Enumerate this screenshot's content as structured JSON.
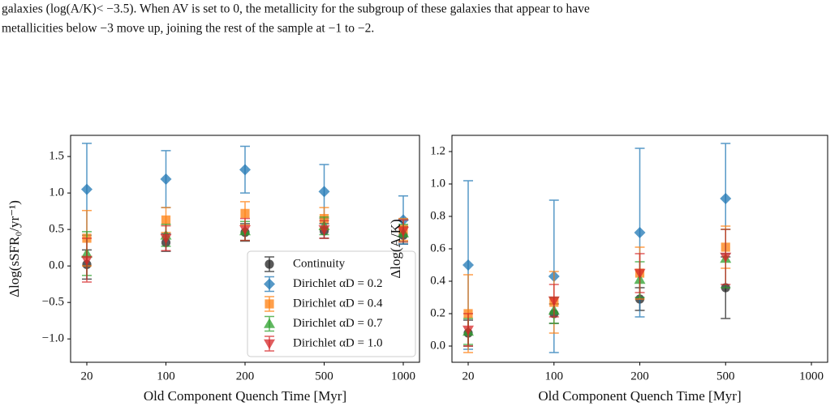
{
  "text": [
    "galaxies (log(A/K)< −3.5).  When AV is set to 0, the metallicity for the subgroup of these galaxies that appear to have",
    "metallicities below −3 move up, joining the rest of the sample at −1 to −2."
  ],
  "chart_data": [
    {
      "type": "errorbar",
      "x_label": "Old Component Quench Time [Myr]",
      "y_label": "Δlog(sSFR₀/yr⁻¹)",
      "categories": [
        "20",
        "100",
        "200",
        "500",
        "1000"
      ],
      "ylim": [
        -1.32,
        1.79
      ],
      "yticks": [
        {
          "value": -1.0,
          "label": "−1.0"
        },
        {
          "value": -0.5,
          "label": "−0.5"
        },
        {
          "value": 0,
          "label": "0.0"
        },
        0.5,
        {
          "value": 1.0,
          "label": "1.0"
        },
        1.5
      ],
      "legend": "lower right",
      "series": [
        {
          "name": "Continuity",
          "color": "#222222",
          "marker": "o",
          "values": [
            0.02,
            0.32,
            0.46,
            0.48,
            0.42
          ],
          "errors": [
            0.2,
            0.12,
            0.12,
            0.1,
            0.12
          ]
        },
        {
          "name": "Dirichlet αD = 0.2",
          "color": "#1f77b4",
          "marker": "D",
          "values": [
            1.05,
            1.19,
            1.32,
            1.02,
            0.63
          ],
          "errors": [
            0.63,
            0.39,
            0.32,
            0.37,
            0.33
          ]
        },
        {
          "name": "Dirichlet αD = 0.4",
          "color": "#ff7f0e",
          "marker": "s",
          "values": [
            0.38,
            0.63,
            0.72,
            0.65,
            0.5
          ],
          "errors": [
            0.38,
            0.17,
            0.16,
            0.15,
            0.15
          ]
        },
        {
          "name": "Dirichlet αD = 0.7",
          "color": "#2ca02c",
          "marker": "^",
          "values": [
            0.17,
            0.42,
            0.48,
            0.55,
            0.45
          ],
          "errors": [
            0.3,
            0.15,
            0.13,
            0.12,
            0.12
          ]
        },
        {
          "name": "Dirichlet αD = 1.0",
          "color": "#d62728",
          "marker": "v",
          "values": [
            0.08,
            0.38,
            0.5,
            0.5,
            0.48
          ],
          "errors": [
            0.3,
            0.17,
            0.15,
            0.12,
            0.15
          ]
        }
      ]
    },
    {
      "type": "errorbar",
      "x_label": "Old Component Quench Time [Myr]",
      "y_label": "Δlog(A/K)",
      "categories": [
        "20",
        "100",
        "200",
        "500",
        "1000"
      ],
      "ylim": [
        -0.1,
        1.3
      ],
      "yticks": [
        {
          "value": 0,
          "label": "0.0"
        },
        0.2,
        0.4,
        0.6,
        0.8,
        {
          "value": 1.0,
          "label": "1.0"
        },
        1.2
      ],
      "series": [
        {
          "name": "Continuity",
          "color": "#222222",
          "marker": "o",
          "values": [
            0.08,
            0.2,
            0.29,
            0.36,
            null
          ],
          "errors": [
            0.08,
            0.06,
            0.07,
            0.19,
            null
          ]
        },
        {
          "name": "Dirichlet αD = 0.2",
          "color": "#1f77b4",
          "marker": "D",
          "values": [
            0.5,
            0.43,
            0.7,
            0.91,
            null
          ],
          "errors": [
            0.52,
            0.47,
            0.52,
            0.34,
            null
          ]
        },
        {
          "name": "Dirichlet αD = 0.4",
          "color": "#ff7f0e",
          "marker": "s",
          "values": [
            0.2,
            0.27,
            0.45,
            0.61,
            null
          ],
          "errors": [
            0.24,
            0.19,
            0.16,
            0.13,
            null
          ]
        },
        {
          "name": "Dirichlet αD = 0.7",
          "color": "#2ca02c",
          "marker": "^",
          "values": [
            0.09,
            0.22,
            0.41,
            0.54,
            null
          ],
          "errors": [
            0.08,
            0.08,
            0.11,
            0.18,
            null
          ]
        },
        {
          "name": "Dirichlet αD = 1.0",
          "color": "#d62728",
          "marker": "v",
          "values": [
            0.1,
            0.28,
            0.45,
            0.55,
            null
          ],
          "errors": [
            0.1,
            0.1,
            0.12,
            0.17,
            null
          ]
        }
      ]
    }
  ]
}
